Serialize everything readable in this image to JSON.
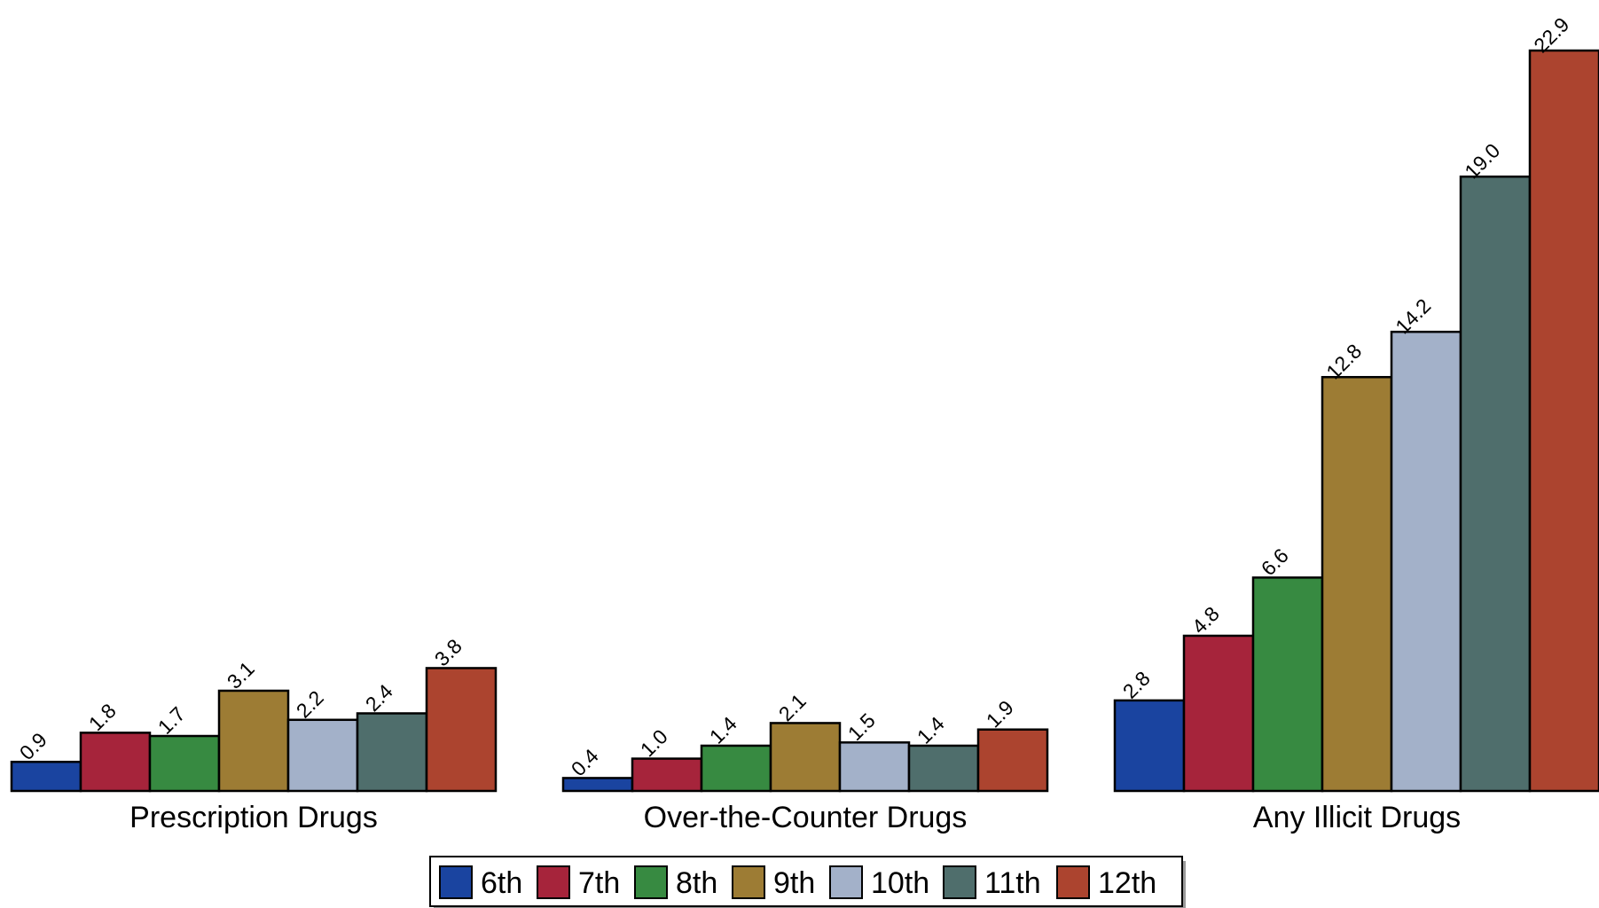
{
  "chart_data": {
    "type": "bar",
    "title": "",
    "xlabel": "",
    "ylabel": "",
    "ylim": [
      0,
      22.9
    ],
    "grid": false,
    "legend_position": "bottom-center",
    "categories": [
      "Prescription Drugs",
      "Over-the-Counter Drugs",
      "Any Illicit Drugs"
    ],
    "series": [
      {
        "name": "6th",
        "color": "#1a44a0",
        "values": [
          0.9,
          0.4,
          2.8
        ]
      },
      {
        "name": "7th",
        "color": "#a6243b",
        "values": [
          1.8,
          1.0,
          4.8
        ]
      },
      {
        "name": "8th",
        "color": "#378a41",
        "values": [
          1.7,
          1.4,
          6.6
        ]
      },
      {
        "name": "9th",
        "color": "#9d7c34",
        "values": [
          3.1,
          2.1,
          12.8
        ]
      },
      {
        "name": "10th",
        "color": "#a3b1c9",
        "values": [
          2.2,
          1.5,
          14.2
        ]
      },
      {
        "name": "11th",
        "color": "#4f6e6c",
        "values": [
          2.4,
          1.4,
          19.0
        ]
      },
      {
        "name": "12th",
        "color": "#ac442f",
        "values": [
          3.8,
          1.9,
          22.9
        ]
      }
    ]
  }
}
